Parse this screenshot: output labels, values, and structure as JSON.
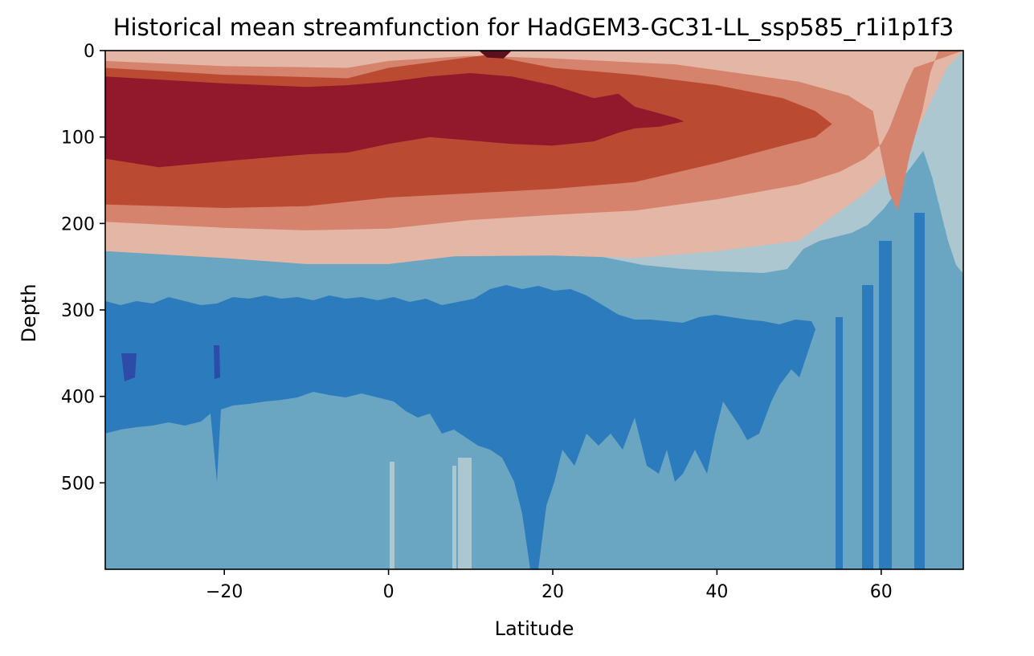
{
  "chart_data": {
    "type": "heatmap",
    "subtype": "filled-contour",
    "title": "Historical mean streamfunction for HadGEM3-GC31-LL_ssp585_r1i1p1f3",
    "xlabel": "Latitude",
    "ylabel": "Depth",
    "xlim": [
      -34.5,
      70
    ],
    "ylim": [
      600,
      0
    ],
    "y_inverted": true,
    "colormap": "blue-to-red diverging (cmocean balance style)",
    "xticks": [
      -20,
      0,
      20,
      40,
      60
    ],
    "xtick_labels": [
      "−20",
      "0",
      "20",
      "40",
      "60"
    ],
    "yticks": [
      0,
      100,
      200,
      300,
      400,
      500
    ],
    "ytick_labels": [
      "0",
      "100",
      "200",
      "300",
      "400",
      "500"
    ],
    "grid": false,
    "legend": "none",
    "contour_levels": [
      {
        "level": 1,
        "color": "#1c3f8f"
      },
      {
        "level": 2,
        "color": "#2d4ca8"
      },
      {
        "level": 3,
        "color": "#2b7bbd"
      },
      {
        "level": 4,
        "color": "#6aa5c2"
      },
      {
        "level": 5,
        "color": "#adc7d1"
      },
      {
        "level": 6,
        "color": "#dccdca"
      },
      {
        "level": 7,
        "color": "#e4b6a6"
      },
      {
        "level": 8,
        "color": "#d5836c"
      },
      {
        "level": 9,
        "color": "#bb4a33"
      },
      {
        "level": 10,
        "color": "#92182b"
      },
      {
        "level": 11,
        "color": "#5c0f1c"
      }
    ],
    "bands": [
      {
        "name": "surface-blue-band",
        "color": "#2b7bbd",
        "top": [
          [
            -34.5,
            0
          ],
          [
            70,
            0
          ]
        ],
        "bottom": [
          [
            -34.5,
            0
          ],
          [
            -30,
            2
          ],
          [
            -20,
            3
          ],
          [
            -10,
            4
          ],
          [
            -2,
            4
          ],
          [
            0,
            1
          ],
          [
            5,
            0
          ],
          [
            70,
            0
          ]
        ]
      },
      {
        "name": "surface-deep-blue-core",
        "color": "#1c3f8f",
        "top": [
          [
            -22,
            0
          ],
          [
            0,
            0
          ]
        ],
        "bottom": [
          [
            -22,
            0
          ],
          [
            -15,
            3
          ],
          [
            -8,
            5
          ],
          [
            -2,
            4
          ],
          [
            0,
            0
          ]
        ]
      },
      {
        "name": "light-red-layer",
        "color": "#e4b6a6",
        "top": [
          [
            -34.5,
            0
          ],
          [
            70,
            0
          ]
        ],
        "bottom": [
          [
            -34.5,
            232
          ],
          [
            -20,
            240
          ],
          [
            -10,
            247
          ],
          [
            0,
            247
          ],
          [
            8,
            238
          ],
          [
            20,
            237
          ],
          [
            30,
            240
          ],
          [
            40,
            232
          ],
          [
            50,
            220
          ],
          [
            58,
            165
          ],
          [
            61,
            140
          ],
          [
            64,
            100
          ],
          [
            66,
            60
          ],
          [
            68,
            20
          ],
          [
            70,
            0
          ]
        ]
      },
      {
        "name": "orange-layer",
        "color": "#d5836c",
        "top": [
          [
            -34.5,
            12
          ],
          [
            -20,
            18
          ],
          [
            -5,
            20
          ],
          [
            0,
            12
          ],
          [
            10,
            6
          ],
          [
            20,
            9
          ],
          [
            35,
            16
          ],
          [
            50,
            36
          ],
          [
            56,
            52
          ],
          [
            59,
            70
          ],
          [
            60,
            120
          ],
          [
            61,
            165
          ],
          [
            62,
            185
          ],
          [
            62.5,
            165
          ],
          [
            63.5,
            120
          ],
          [
            65,
            70
          ],
          [
            66,
            25
          ],
          [
            67,
            0
          ],
          [
            70,
            0
          ]
        ],
        "bottom": [
          [
            -34.5,
            198
          ],
          [
            -20,
            205
          ],
          [
            -10,
            208
          ],
          [
            0,
            206
          ],
          [
            10,
            196
          ],
          [
            20,
            190
          ],
          [
            30,
            185
          ],
          [
            40,
            172
          ],
          [
            50,
            155
          ],
          [
            55,
            140
          ],
          [
            58,
            125
          ],
          [
            60,
            108
          ],
          [
            61,
            90
          ],
          [
            62,
            65
          ],
          [
            63,
            40
          ],
          [
            64,
            20
          ],
          [
            70,
            0
          ]
        ]
      },
      {
        "name": "red-layer",
        "color": "#bb4a33",
        "top": [
          [
            -34.5,
            20
          ],
          [
            -20,
            28
          ],
          [
            -5,
            32
          ],
          [
            0,
            20
          ],
          [
            8,
            10
          ],
          [
            12,
            5
          ],
          [
            20,
            20
          ],
          [
            30,
            28
          ],
          [
            40,
            40
          ],
          [
            48,
            55
          ],
          [
            52,
            70
          ],
          [
            54,
            85
          ],
          [
            52,
            100
          ],
          [
            48,
            110
          ],
          [
            40,
            120
          ],
          [
            30,
            126
          ],
          [
            20,
            128
          ],
          [
            10,
            132
          ],
          [
            0,
            136
          ],
          [
            -34.5,
            140
          ]
        ],
        "bottom": [
          [
            -34.5,
            178
          ],
          [
            -20,
            182
          ],
          [
            -10,
            180
          ],
          [
            0,
            170
          ],
          [
            10,
            165
          ],
          [
            20,
            160
          ],
          [
            30,
            152
          ],
          [
            40,
            130
          ],
          [
            48,
            110
          ],
          [
            52,
            100
          ],
          [
            54,
            85
          ]
        ]
      },
      {
        "name": "dark-red-core",
        "color": "#92182b",
        "top": [
          [
            -34.5,
            30
          ],
          [
            -20,
            38
          ],
          [
            -10,
            42
          ],
          [
            -5,
            40
          ],
          [
            0,
            36
          ],
          [
            5,
            30
          ],
          [
            10,
            26
          ],
          [
            15,
            30
          ],
          [
            20,
            40
          ],
          [
            25,
            55
          ],
          [
            28,
            50
          ],
          [
            30,
            65
          ],
          [
            32,
            70
          ],
          [
            35,
            78
          ],
          [
            36,
            82
          ]
        ],
        "bottom": [
          [
            -34.5,
            125
          ],
          [
            -28,
            135
          ],
          [
            -20,
            128
          ],
          [
            -10,
            120
          ],
          [
            -5,
            118
          ],
          [
            0,
            108
          ],
          [
            5,
            100
          ],
          [
            10,
            104
          ],
          [
            15,
            108
          ],
          [
            20,
            110
          ],
          [
            25,
            105
          ],
          [
            28,
            95
          ],
          [
            30,
            90
          ],
          [
            33,
            88
          ],
          [
            36,
            82
          ]
        ]
      },
      {
        "name": "surface-dark-red-core",
        "color": "#5c0f1c",
        "top": [
          [
            11,
            0
          ],
          [
            15,
            0
          ]
        ],
        "bottom": [
          [
            11,
            0
          ],
          [
            12,
            8
          ],
          [
            14,
            9
          ],
          [
            15,
            0
          ]
        ]
      }
    ]
  }
}
